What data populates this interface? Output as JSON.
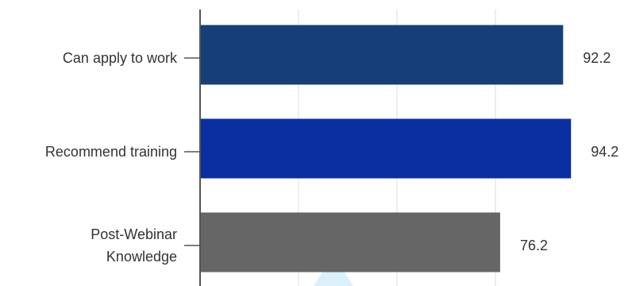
{
  "chart_data": {
    "type": "bar",
    "orientation": "horizontal",
    "categories": [
      {
        "lines": [
          "Can apply to work"
        ]
      },
      {
        "lines": [
          "Recommend training"
        ]
      },
      {
        "lines": [
          "Post-Webinar",
          "Knowledge"
        ]
      }
    ],
    "values": [
      92.2,
      94.2,
      76.2
    ],
    "value_labels": [
      "92.2",
      "94.2",
      "76.2"
    ],
    "colors": [
      "#163f7a",
      "#0a2fa0",
      "#666666"
    ],
    "xlim": [
      0,
      100
    ],
    "x_gridlines": [
      25,
      50,
      75
    ],
    "grid": true,
    "gridline_color": "#dddddd",
    "axis_color": "#555555",
    "marker_color": "#daf0fb"
  }
}
